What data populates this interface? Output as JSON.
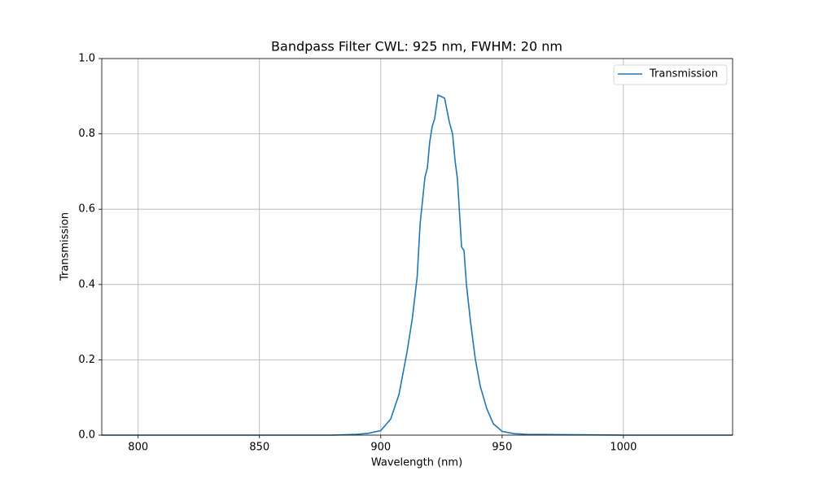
{
  "chart_data": {
    "type": "line",
    "title": "Bandpass Filter CWL: 925 nm, FWHM: 20 nm",
    "x_label": "Wavelength (nm)",
    "y_label": "Transmission",
    "x": [
      785,
      850,
      880,
      890,
      895,
      900,
      904.1,
      907.5,
      910.8,
      913,
      915,
      916.2,
      918.2,
      919.2,
      920.2,
      921.2,
      922.2,
      923.6,
      926.3,
      928.3,
      929.6,
      930.6,
      931.6,
      933.3,
      934.3,
      935.3,
      937,
      939,
      941,
      943.7,
      946.4,
      950,
      955,
      960,
      1000,
      1045
    ],
    "series": [
      {
        "name": "Transmission",
        "color": "#1f77b4",
        "values": [
          0,
          0,
          0,
          0.002,
          0.005,
          0.012,
          0.043,
          0.108,
          0.22,
          0.31,
          0.42,
          0.56,
          0.685,
          0.71,
          0.78,
          0.82,
          0.84,
          0.903,
          0.895,
          0.83,
          0.8,
          0.73,
          0.68,
          0.5,
          0.49,
          0.4,
          0.3,
          0.2,
          0.13,
          0.07,
          0.03,
          0.01,
          0.004,
          0.002,
          0,
          0
        ]
      }
    ],
    "xlim": [
      785,
      1045
    ],
    "ylim": [
      0,
      1
    ],
    "xticks": [
      800,
      850,
      900,
      950,
      1000
    ],
    "yticks": [
      {
        "value": 0,
        "label": "0.0"
      },
      {
        "value": 0.2,
        "label": "0.2"
      },
      {
        "value": 0.4,
        "label": "0.4"
      },
      {
        "value": 0.6,
        "label": "0.6"
      },
      {
        "value": 0.8,
        "label": "0.8"
      },
      {
        "value": 1,
        "label": "1.0"
      }
    ],
    "grid": true,
    "legend": "upper right"
  }
}
